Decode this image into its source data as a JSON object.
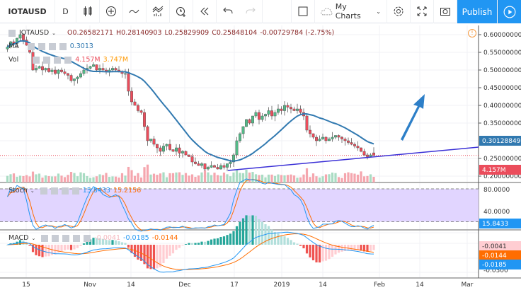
{
  "toolbar": {
    "symbol": "IOTAUSD",
    "interval": "D",
    "my_charts": "My Charts",
    "publish": "Publish",
    "icons": [
      "candles-icon",
      "add-indicator-plus-icon",
      "compare-wave-icon",
      "indicators-icon",
      "alert-clock-icon",
      "replay-icon",
      "undo-icon",
      "redo-icon",
      "layout-square-icon",
      "cloud-icon",
      "settings-gear-icon",
      "fullscreen-icon",
      "camera-snapshot-icon",
      "play-icon"
    ]
  },
  "legend": {
    "symbol": "IOTAUSD",
    "open": "O0.26582171",
    "high": "H0.28140903",
    "low": "L0.25829909",
    "close": "C0.25848104",
    "change": "-0.00729784 (-2.75%)",
    "ma_label": "MA",
    "ma_value": "0.3013",
    "vol_label": "Vol",
    "vol_value1": "4.157M",
    "vol_value2": "3.747M",
    "stoch_label": "Stoch",
    "stoch_k": "15.8433",
    "stoch_d": "15.2156",
    "macd_label": "MACD",
    "macd_hist": "-0.0041",
    "macd_line": "-0.0185",
    "macd_signal": "-0.0144"
  },
  "price_axis": {
    "ticks": [
      "0.60000000",
      "0.55000000",
      "0.50000000",
      "0.45000000",
      "0.40000000",
      "0.35000000",
      "0.25000000",
      "0.20000000"
    ],
    "ma_badge": "0.30128849",
    "vol_badge": "4.157M"
  },
  "stoch_axis": {
    "ticks": [
      "80.0000",
      "40.0000"
    ],
    "badge": "15.8433"
  },
  "macd_axis": {
    "badges": [
      "-0.0041",
      "-0.0144",
      "-0.0185"
    ],
    "tick": "-0.0300"
  },
  "time_axis": {
    "labels": [
      "15",
      "Nov",
      "14",
      "Dec",
      "17",
      "2019",
      "14",
      "Feb",
      "14",
      "Mar"
    ]
  },
  "colors": {
    "up": "#53b987",
    "down": "#eb4d5c",
    "ma": "#3179b0",
    "trendline": "#3a2fd6",
    "arrow": "#2d7fc8",
    "stoch_k": "#2196f3",
    "stoch_d": "#ff6d00",
    "stoch_band": "#e1d5ff",
    "accent": "#2196f3"
  },
  "chart_data": {
    "type": "candlestick",
    "symbol": "IOTAUSD",
    "interval": "daily",
    "x_range": [
      "2018-10",
      "2019-03"
    ],
    "ylim": [
      0.19,
      0.63
    ],
    "closes": [
      0.565,
      0.58,
      0.575,
      0.59,
      0.6,
      0.585,
      0.57,
      0.55,
      0.5,
      0.505,
      0.51,
      0.5,
      0.505,
      0.495,
      0.5,
      0.49,
      0.5,
      0.495,
      0.49,
      0.485,
      0.47,
      0.475,
      0.48,
      0.49,
      0.5,
      0.505,
      0.51,
      0.515,
      0.5,
      0.505,
      0.5,
      0.495,
      0.5,
      0.505,
      0.5,
      0.495,
      0.49,
      0.49,
      0.44,
      0.41,
      0.4,
      0.385,
      0.38,
      0.34,
      0.3,
      0.305,
      0.29,
      0.28,
      0.27,
      0.285,
      0.29,
      0.275,
      0.27,
      0.28,
      0.265,
      0.27,
      0.26,
      0.255,
      0.24,
      0.235,
      0.23,
      0.235,
      0.22,
      0.225,
      0.23,
      0.225,
      0.22,
      0.23,
      0.225,
      0.235,
      0.24,
      0.26,
      0.3,
      0.32,
      0.34,
      0.36,
      0.35,
      0.37,
      0.38,
      0.36,
      0.37,
      0.375,
      0.385,
      0.37,
      0.38,
      0.39,
      0.385,
      0.4,
      0.395,
      0.39,
      0.385,
      0.39,
      0.38,
      0.37,
      0.33,
      0.32,
      0.31,
      0.3,
      0.305,
      0.31,
      0.3,
      0.305,
      0.31,
      0.315,
      0.31,
      0.305,
      0.3,
      0.295,
      0.29,
      0.285,
      0.28,
      0.27,
      0.26,
      0.255,
      0.26,
      0.25848104
    ],
    "last_ohlc": {
      "open": 0.26582171,
      "high": 0.28140903,
      "low": 0.25829909,
      "close": 0.25848104
    },
    "indicators": [
      "MA",
      "Volume",
      "Stochastic",
      "MACD"
    ],
    "stoch_levels": [
      80,
      20
    ],
    "grid": true
  }
}
